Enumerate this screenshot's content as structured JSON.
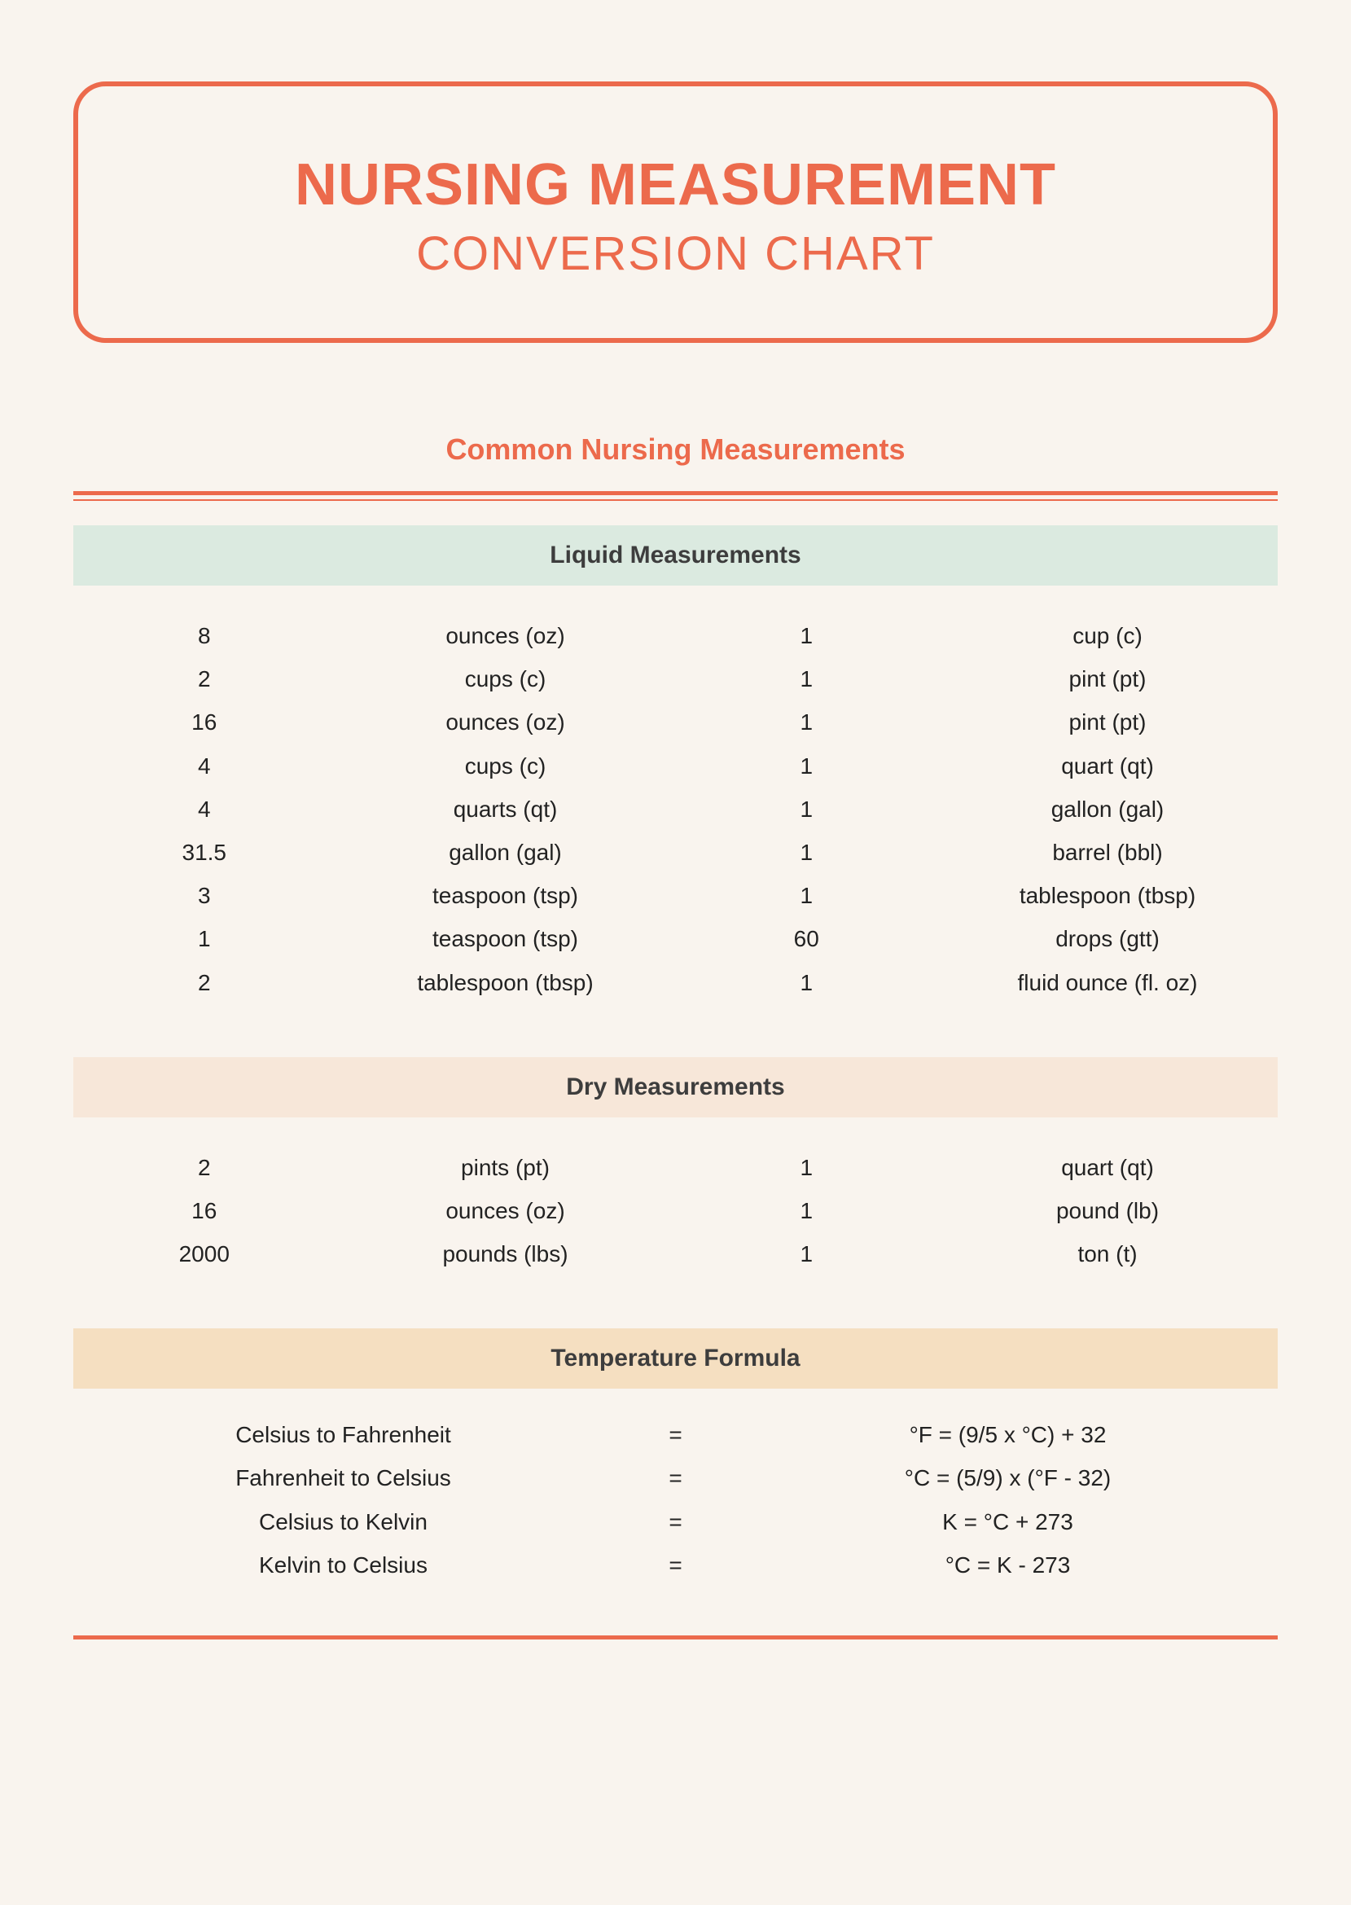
{
  "colors": {
    "accent": "#ec6a4c",
    "header_liquid_bg": "#dbeae0",
    "header_dry_bg": "#f7e7d9",
    "header_temp_bg": "#f5dfc1"
  },
  "title": {
    "line1": "NURSING MEASUREMENT",
    "line2": "CONVERSION CHART"
  },
  "section_title": "Common Nursing Measurements",
  "liquid": {
    "header": "Liquid Measurements",
    "rows": [
      {
        "a": "8",
        "au": "ounces (oz)",
        "b": "1",
        "bu": "cup (c)"
      },
      {
        "a": "2",
        "au": "cups (c)",
        "b": "1",
        "bu": "pint (pt)"
      },
      {
        "a": "16",
        "au": "ounces (oz)",
        "b": "1",
        "bu": "pint (pt)"
      },
      {
        "a": "4",
        "au": "cups (c)",
        "b": "1",
        "bu": "quart (qt)"
      },
      {
        "a": "4",
        "au": "quarts (qt)",
        "b": "1",
        "bu": "gallon (gal)"
      },
      {
        "a": "31.5",
        "au": "gallon (gal)",
        "b": "1",
        "bu": "barrel (bbl)"
      },
      {
        "a": "3",
        "au": "teaspoon (tsp)",
        "b": "1",
        "bu": "tablespoon (tbsp)"
      },
      {
        "a": "1",
        "au": "teaspoon (tsp)",
        "b": "60",
        "bu": "drops (gtt)"
      },
      {
        "a": "2",
        "au": "tablespoon (tbsp)",
        "b": "1",
        "bu": "fluid ounce (fl. oz)"
      }
    ]
  },
  "dry": {
    "header": "Dry Measurements",
    "rows": [
      {
        "a": "2",
        "au": "pints (pt)",
        "b": "1",
        "bu": "quart (qt)"
      },
      {
        "a": "16",
        "au": "ounces (oz)",
        "b": "1",
        "bu": "pound (lb)"
      },
      {
        "a": "2000",
        "au": "pounds (lbs)",
        "b": "1",
        "bu": "ton (t)"
      }
    ]
  },
  "temp": {
    "header": "Temperature Formula",
    "rows": [
      {
        "label": "Celsius to Fahrenheit",
        "eq": "=",
        "formula": "°F = (9/5 x °C) + 32"
      },
      {
        "label": "Fahrenheit to Celsius",
        "eq": "=",
        "formula": "°C = (5/9) x (°F - 32)"
      },
      {
        "label": "Celsius to Kelvin",
        "eq": "=",
        "formula": "K = °C + 273"
      },
      {
        "label": "Kelvin to Celsius",
        "eq": "=",
        "formula": "°C = K - 273"
      }
    ]
  }
}
